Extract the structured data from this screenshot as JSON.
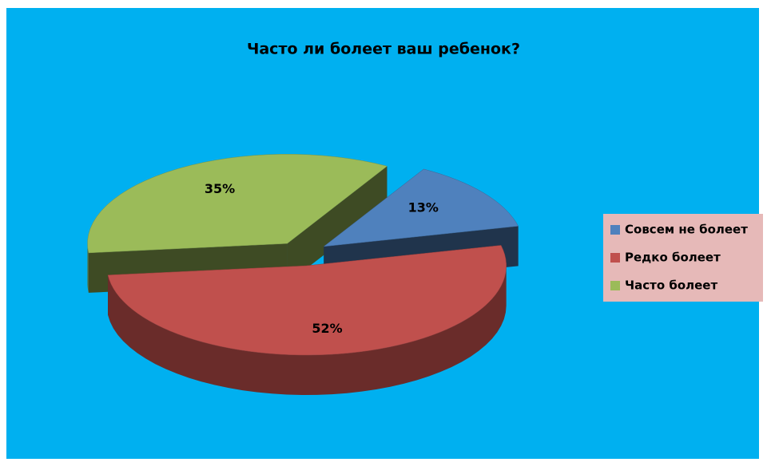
{
  "chart_data": {
    "type": "pie",
    "title": "Часто ли болеет ваш ребенок?",
    "categories": [
      "Совсем не болеет",
      "Редко болеет",
      "Часто болеет"
    ],
    "values": [
      13,
      52,
      35
    ],
    "value_labels": [
      "13%",
      "52%",
      "35%"
    ],
    "colors": [
      "#4f81bd",
      "#c0504d",
      "#9bbb59"
    ],
    "legend": "right"
  }
}
